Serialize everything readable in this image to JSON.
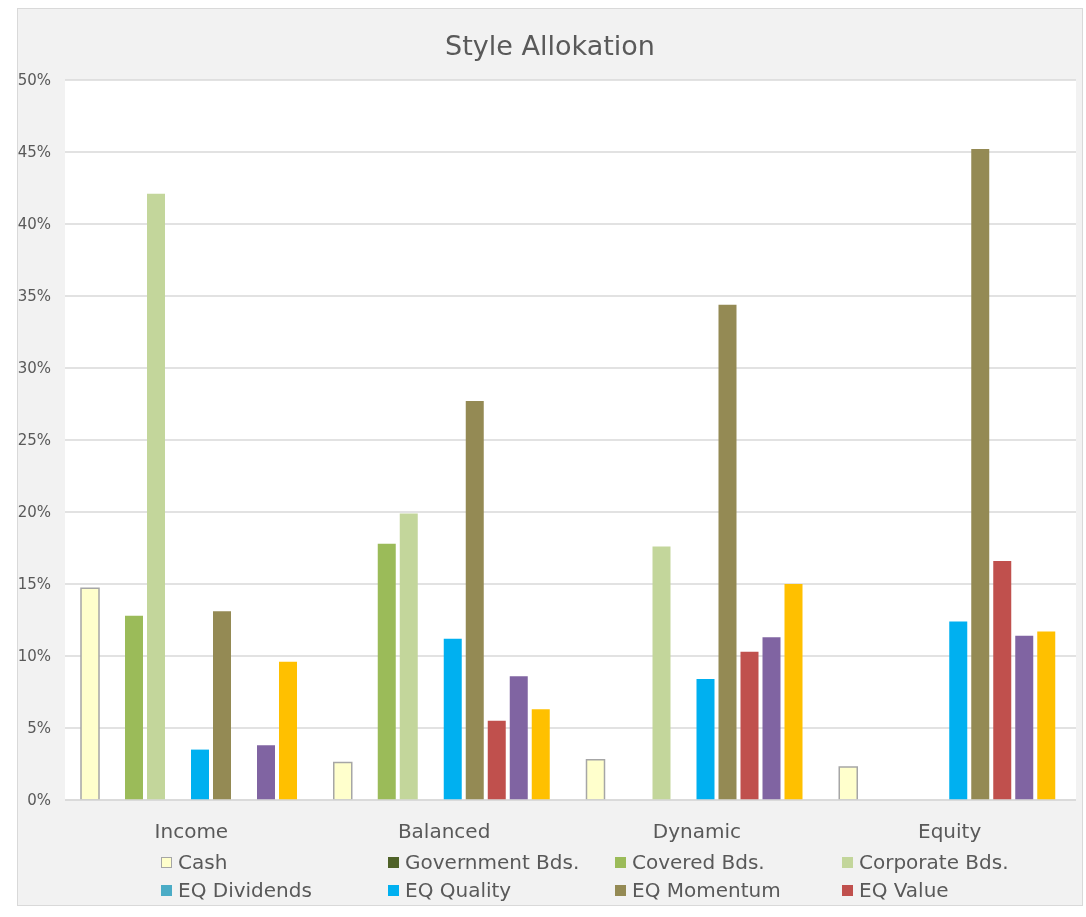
{
  "chart_data": {
    "type": "bar",
    "title": "Style Allokation",
    "categories": [
      "Income",
      "Balanced",
      "Dynamic",
      "Equity"
    ],
    "series": [
      {
        "name": "Cash",
        "color": "#ffffcc",
        "values": [
          14.7,
          2.6,
          2.8,
          2.3
        ]
      },
      {
        "name": "Government Bds.",
        "color": "#4f6228",
        "values": [
          null,
          null,
          null,
          null
        ]
      },
      {
        "name": "Covered Bds.",
        "color": "#9bbb59",
        "values": [
          12.8,
          17.8,
          null,
          null
        ]
      },
      {
        "name": "Corporate Bds.",
        "color": "#c3d69b",
        "values": [
          42.1,
          19.9,
          17.6,
          null
        ]
      },
      {
        "name": "EQ Dividends",
        "color": "#4bacc6",
        "values": [
          null,
          null,
          null,
          null
        ]
      },
      {
        "name": "EQ Quality",
        "color": "#00b0f0",
        "values": [
          3.5,
          11.2,
          8.4,
          12.4
        ]
      },
      {
        "name": "EQ Momentum",
        "color": "#948a54",
        "values": [
          13.1,
          27.7,
          34.4,
          45.2
        ]
      },
      {
        "name": "EQ Value",
        "color": "#c0504d",
        "values": [
          null,
          5.5,
          10.3,
          16.6
        ]
      },
      {
        "color": "#8064a2",
        "values": [
          3.8,
          8.6,
          11.3,
          11.4
        ]
      },
      {
        "color": "#ffc000",
        "values": [
          9.6,
          6.3,
          15.0,
          11.7
        ]
      }
    ],
    "ylim": [
      0,
      50
    ],
    "yticks": [
      {
        "value": 0,
        "label": "0%"
      },
      {
        "value": 5,
        "label": "5%"
      },
      {
        "value": 10,
        "label": "10%"
      },
      {
        "value": 15,
        "label": "15%"
      },
      {
        "value": 20,
        "label": "20%"
      },
      {
        "value": 25,
        "label": "25%"
      },
      {
        "value": 30,
        "label": "30%"
      },
      {
        "value": 35,
        "label": "35%"
      },
      {
        "value": 40,
        "label": "40%"
      },
      {
        "value": 45,
        "label": "45%"
      },
      {
        "value": 50,
        "label": "50%"
      }
    ],
    "grid": "y",
    "legend": "bottom"
  }
}
